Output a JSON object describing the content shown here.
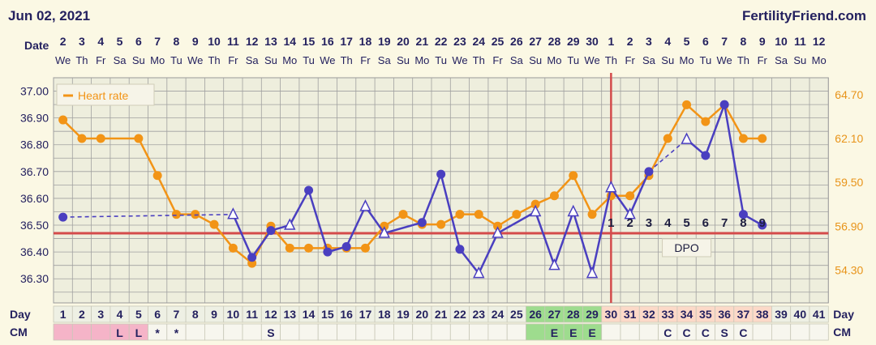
{
  "header": {
    "date": "Jun 02, 2021",
    "site": "FertilityFriend.com"
  },
  "labels": {
    "date": "Date",
    "day": "Day",
    "cm": "CM",
    "dpo": "DPO"
  },
  "legend": {
    "heart_rate": "Heart rate"
  },
  "colors": {
    "background": "#fbf8e4",
    "plot_bg": "#eeeedd",
    "grid": "#a0a0a0",
    "temp_line": "#4a3fc0",
    "heart_rate_line": "#f29416",
    "coverline": "#d44b4b",
    "ovulation_line": "#d44b4b",
    "text_dark": "#24215f",
    "right_axis_text": "#e8941a",
    "cm_pink": "#f5b4c8",
    "cm_green": "#9edc8e",
    "day_peach": "#fcd9c8"
  },
  "chart_data": {
    "type": "line",
    "x_label": "Day",
    "cycle_days": [
      1,
      2,
      3,
      4,
      5,
      6,
      7,
      8,
      9,
      10,
      11,
      12,
      13,
      14,
      15,
      16,
      17,
      18,
      19,
      20,
      21,
      22,
      23,
      24,
      25,
      26,
      27,
      28,
      29,
      30,
      31,
      32,
      33,
      34,
      35,
      36,
      37,
      38,
      39,
      40,
      41
    ],
    "dates": [
      "2",
      "3",
      "4",
      "5",
      "6",
      "7",
      "8",
      "9",
      "10",
      "11",
      "12",
      "13",
      "14",
      "15",
      "16",
      "17",
      "18",
      "19",
      "20",
      "21",
      "22",
      "23",
      "24",
      "25",
      "26",
      "27",
      "28",
      "29",
      "30",
      "1",
      "2",
      "3",
      "4",
      "5",
      "6",
      "7",
      "8",
      "9",
      "10",
      "11",
      "12"
    ],
    "weekdays": [
      "We",
      "Th",
      "Fr",
      "Sa",
      "Su",
      "Mo",
      "Tu",
      "We",
      "Th",
      "Fr",
      "Sa",
      "Su",
      "Mo",
      "Tu",
      "We",
      "Th",
      "Fr",
      "Sa",
      "Su",
      "Mo",
      "Tu",
      "We",
      "Th",
      "Fr",
      "Sa",
      "Su",
      "Mo",
      "Tu",
      "We",
      "Th",
      "Fr",
      "Sa",
      "Su",
      "Mo",
      "Tu",
      "We",
      "Th",
      "Fr",
      "Sa",
      "Su",
      "Mo"
    ],
    "left_axis": {
      "ticks": [
        "37.00",
        "36.90",
        "36.80",
        "36.70",
        "36.60",
        "36.50",
        "36.40",
        "36.30"
      ],
      "range": [
        36.21,
        37.05
      ]
    },
    "right_axis": {
      "ticks": [
        "64.70",
        "62.10",
        "59.50",
        "56.90",
        "54.30"
      ],
      "range": [
        52.35,
        65.7
      ]
    },
    "series": [
      {
        "key": "temperature",
        "points": [
          {
            "day": 1,
            "value": 36.53,
            "kind": "filled"
          },
          {
            "day": 10,
            "value": 36.54,
            "kind": "open"
          },
          {
            "day": 11,
            "value": 36.38,
            "kind": "filled"
          },
          {
            "day": 12,
            "value": 36.48,
            "kind": "filled"
          },
          {
            "day": 13,
            "value": 36.5,
            "kind": "open"
          },
          {
            "day": 14,
            "value": 36.63,
            "kind": "filled"
          },
          {
            "day": 15,
            "value": 36.4,
            "kind": "filled"
          },
          {
            "day": 16,
            "value": 36.42,
            "kind": "filled"
          },
          {
            "day": 17,
            "value": 36.57,
            "kind": "open"
          },
          {
            "day": 18,
            "value": 36.47,
            "kind": "open"
          },
          {
            "day": 20,
            "value": 36.51,
            "kind": "filled"
          },
          {
            "day": 21,
            "value": 36.69,
            "kind": "filled"
          },
          {
            "day": 22,
            "value": 36.41,
            "kind": "filled"
          },
          {
            "day": 23,
            "value": 36.32,
            "kind": "open"
          },
          {
            "day": 24,
            "value": 36.47,
            "kind": "open"
          },
          {
            "day": 26,
            "value": 36.55,
            "kind": "open"
          },
          {
            "day": 27,
            "value": 36.35,
            "kind": "open"
          },
          {
            "day": 28,
            "value": 36.55,
            "kind": "open"
          },
          {
            "day": 29,
            "value": 36.32,
            "kind": "open"
          },
          {
            "day": 30,
            "value": 36.64,
            "kind": "open"
          },
          {
            "day": 31,
            "value": 36.54,
            "kind": "open"
          },
          {
            "day": 32,
            "value": 36.7,
            "kind": "filled"
          },
          {
            "day": 34,
            "value": 36.82,
            "kind": "open"
          },
          {
            "day": 35,
            "value": 36.76,
            "kind": "filled"
          },
          {
            "day": 36,
            "value": 36.95,
            "kind": "filled"
          },
          {
            "day": 37,
            "value": 36.54,
            "kind": "filled"
          },
          {
            "day": 38,
            "value": 36.5,
            "kind": "filled"
          }
        ],
        "dashed_segments": [
          [
            1,
            10
          ],
          [
            32,
            34
          ]
        ]
      },
      {
        "key": "heart_rate",
        "name": "Heart rate",
        "points": [
          {
            "day": 1,
            "value": 63.2
          },
          {
            "day": 2,
            "value": 62.1
          },
          {
            "day": 3,
            "value": 62.1
          },
          {
            "day": 5,
            "value": 62.1
          },
          {
            "day": 6,
            "value": 59.9
          },
          {
            "day": 7,
            "value": 57.6
          },
          {
            "day": 8,
            "value": 57.6
          },
          {
            "day": 9,
            "value": 57.0
          },
          {
            "day": 10,
            "value": 55.6
          },
          {
            "day": 11,
            "value": 54.7
          },
          {
            "day": 12,
            "value": 56.9
          },
          {
            "day": 13,
            "value": 55.6
          },
          {
            "day": 14,
            "value": 55.6
          },
          {
            "day": 15,
            "value": 55.6
          },
          {
            "day": 16,
            "value": 55.6
          },
          {
            "day": 17,
            "value": 55.6
          },
          {
            "day": 18,
            "value": 56.9
          },
          {
            "day": 19,
            "value": 57.6
          },
          {
            "day": 20,
            "value": 57.0
          },
          {
            "day": 21,
            "value": 57.0
          },
          {
            "day": 22,
            "value": 57.6
          },
          {
            "day": 23,
            "value": 57.6
          },
          {
            "day": 24,
            "value": 56.9
          },
          {
            "day": 25,
            "value": 57.6
          },
          {
            "day": 26,
            "value": 58.2
          },
          {
            "day": 27,
            "value": 58.7
          },
          {
            "day": 28,
            "value": 59.9
          },
          {
            "day": 29,
            "value": 57.6
          },
          {
            "day": 30,
            "value": 58.7
          },
          {
            "day": 31,
            "value": 58.7
          },
          {
            "day": 32,
            "value": 59.9
          },
          {
            "day": 33,
            "value": 62.1
          },
          {
            "day": 34,
            "value": 64.1
          },
          {
            "day": 35,
            "value": 63.1
          },
          {
            "day": 36,
            "value": 64.1
          },
          {
            "day": 37,
            "value": 62.1
          },
          {
            "day": 38,
            "value": 62.1
          }
        ]
      }
    ],
    "coverline": 36.47,
    "ovulation_day": 29.5,
    "dpo_days": [
      30,
      31,
      32,
      33,
      34,
      35,
      36,
      37,
      38
    ],
    "dpo_labels": [
      "1",
      "2",
      "3",
      "4",
      "5",
      "6",
      "7",
      "8",
      "9"
    ],
    "cm": [
      {
        "day": 4,
        "label": "L"
      },
      {
        "day": 5,
        "label": "L"
      },
      {
        "day": 6,
        "label": "*"
      },
      {
        "day": 7,
        "label": "*"
      },
      {
        "day": 12,
        "label": "S"
      },
      {
        "day": 27,
        "label": "E"
      },
      {
        "day": 28,
        "label": "E"
      },
      {
        "day": 29,
        "label": "E"
      },
      {
        "day": 33,
        "label": "C"
      },
      {
        "day": 34,
        "label": "C"
      },
      {
        "day": 35,
        "label": "C"
      },
      {
        "day": 36,
        "label": "S"
      },
      {
        "day": 37,
        "label": "C"
      }
    ],
    "cm_color_days": {
      "pink": [
        1,
        2,
        3,
        4,
        5
      ],
      "green": [
        26,
        27,
        28,
        29
      ],
      "peach": [
        30,
        31,
        32,
        33,
        34,
        35,
        36,
        37,
        38
      ]
    },
    "grid": true,
    "legend_position": "top-left"
  }
}
